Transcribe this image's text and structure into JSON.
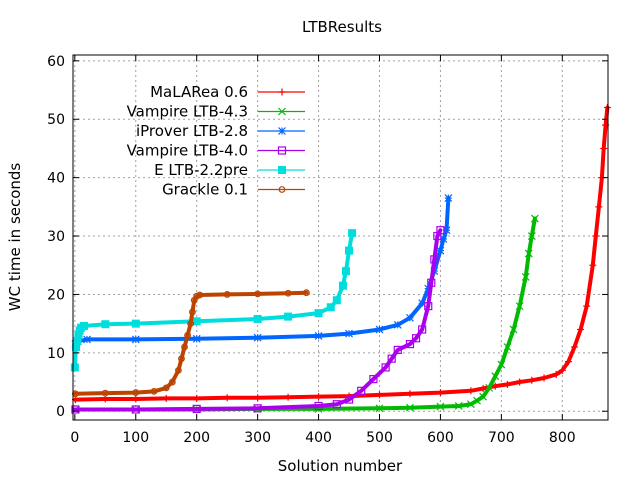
{
  "chart_data": {
    "type": "line",
    "title": "LTBResults",
    "xlabel": "Solution number",
    "ylabel": "WC time in seconds",
    "xlim": [
      -3,
      875
    ],
    "ylim": [
      -1.5,
      61
    ],
    "xticks": [
      0,
      100,
      200,
      300,
      400,
      500,
      600,
      700,
      800
    ],
    "yticks": [
      0,
      10,
      20,
      30,
      40,
      50,
      60
    ],
    "grid": true,
    "legend_position": "top-left",
    "series": [
      {
        "name": "MaLARea 0.6",
        "color": "#ff0000",
        "marker": "plus",
        "x": [
          1,
          50,
          100,
          150,
          200,
          250,
          300,
          350,
          400,
          450,
          500,
          550,
          600,
          650,
          670,
          690,
          710,
          730,
          750,
          770,
          790,
          800,
          810,
          820,
          830,
          840,
          850,
          855,
          860,
          865,
          868,
          871,
          874
        ],
        "y": [
          2.0,
          2.1,
          2.1,
          2.2,
          2.2,
          2.3,
          2.3,
          2.4,
          2.5,
          2.6,
          2.8,
          3.0,
          3.2,
          3.5,
          3.9,
          4.3,
          4.6,
          5.0,
          5.3,
          5.7,
          6.3,
          7.0,
          8.5,
          11.0,
          14.0,
          18.0,
          25.0,
          30.0,
          35.0,
          40.0,
          45.0,
          49.0,
          52.0
        ]
      },
      {
        "name": "Vampire LTB-4.3",
        "color": "#00bb00",
        "marker": "x",
        "x": [
          1,
          100,
          200,
          300,
          400,
          500,
          550,
          600,
          630,
          650,
          660,
          670,
          680,
          690,
          700,
          710,
          720,
          730,
          740,
          745,
          750,
          755
        ],
        "y": [
          0.3,
          0.3,
          0.3,
          0.4,
          0.4,
          0.5,
          0.6,
          0.8,
          0.9,
          1.2,
          1.8,
          2.5,
          4.0,
          6.0,
          8.0,
          11.0,
          14.0,
          18.0,
          23.0,
          27.0,
          30.0,
          33.0
        ]
      },
      {
        "name": "iProver LTB-2.8",
        "color": "#0066ff",
        "marker": "star",
        "x": [
          1,
          5,
          20,
          100,
          200,
          300,
          400,
          450,
          500,
          530,
          550,
          570,
          580,
          590,
          600,
          605,
          610,
          613
        ],
        "y": [
          11.5,
          12.0,
          12.3,
          12.3,
          12.4,
          12.6,
          12.9,
          13.3,
          14.0,
          14.8,
          16.0,
          18.5,
          21.0,
          24.0,
          27.5,
          29.5,
          31.0,
          36.5
        ]
      },
      {
        "name": "Vampire LTB-4.0",
        "color": "#aa00ee",
        "marker": "square",
        "x": [
          1,
          100,
          200,
          300,
          400,
          430,
          450,
          470,
          490,
          510,
          520,
          530,
          550,
          560,
          570,
          580,
          585,
          590,
          595,
          600
        ],
        "y": [
          0.3,
          0.3,
          0.4,
          0.5,
          0.9,
          1.2,
          2.0,
          3.5,
          5.5,
          7.5,
          9.0,
          10.5,
          11.5,
          12.5,
          14.0,
          18.0,
          22.0,
          26.0,
          30.0,
          31.0
        ]
      },
      {
        "name": "E LTB-2.2pre",
        "color": "#00dddd",
        "marker": "filled-square",
        "x": [
          0,
          2,
          4,
          6,
          8,
          10,
          15,
          50,
          100,
          200,
          300,
          350,
          400,
          420,
          430,
          440,
          445,
          450,
          455
        ],
        "y": [
          7.5,
          11.0,
          12.0,
          13.0,
          13.8,
          14.3,
          14.6,
          14.9,
          15.0,
          15.4,
          15.8,
          16.2,
          16.8,
          17.8,
          19.0,
          21.5,
          24.0,
          27.5,
          30.5
        ]
      },
      {
        "name": "Grackle 0.1",
        "color": "#bb4400",
        "marker": "circle",
        "x": [
          1,
          50,
          100,
          130,
          150,
          160,
          170,
          175,
          180,
          185,
          190,
          193,
          196,
          200,
          205,
          250,
          300,
          350,
          380
        ],
        "y": [
          3.0,
          3.1,
          3.2,
          3.4,
          4.0,
          5.0,
          7.0,
          9.0,
          11.0,
          13.0,
          15.0,
          17.0,
          19.0,
          19.7,
          19.9,
          20.0,
          20.1,
          20.2,
          20.3
        ]
      }
    ]
  }
}
